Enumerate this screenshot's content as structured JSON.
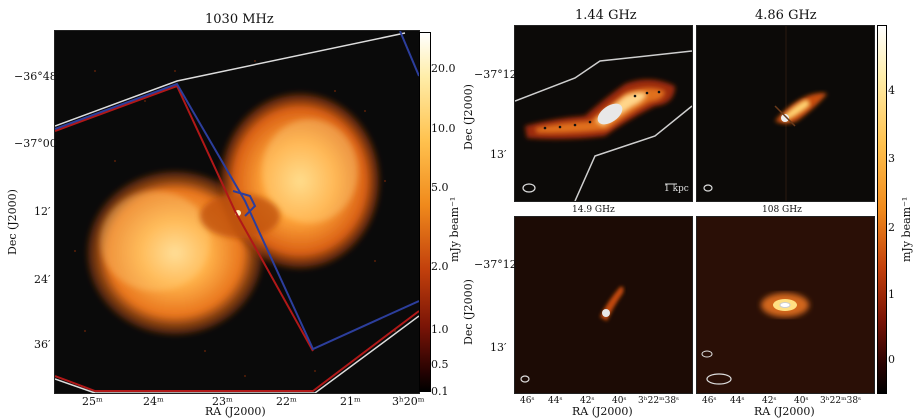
{
  "left_panel": {
    "title": "1030 MHz",
    "dec_ticks": [
      "−36°48′",
      "−37°00′",
      "12′",
      "24′",
      "36′"
    ],
    "ra_ticks": [
      "25ᵐ",
      "24ᵐ",
      "23ᵐ",
      "22ᵐ",
      "21ᵐ",
      "3ʰ20ᵐ"
    ],
    "xlabel": "RA (J2000)",
    "ylabel": "Dec (J2000)",
    "colorbar_ticks": [
      "20.0",
      "10.0",
      "5.0",
      "2.0",
      "1.0",
      "0.5",
      "0.1"
    ],
    "colorbar_label": "mJy beam⁻¹"
  },
  "right_panels": {
    "titles": [
      "1.44 GHz",
      "4.86 GHz"
    ],
    "subtitles": [
      "14.9 GHz",
      "108 GHz"
    ],
    "dec_ticks_top": [
      "−37°12′",
      "13′"
    ],
    "dec_ticks_bottom": [
      "−37°12′",
      "13′"
    ],
    "ra_ticks": [
      "46ˢ",
      "44ˢ",
      "42ˢ",
      "40ˢ",
      "3ʰ22ᵐ38ˢ"
    ],
    "xlabel": "RA (J2000)",
    "ylabel": "Dec (J2000)",
    "scalebar_label": "1 kpc",
    "colorbar_ticks": [
      "4",
      "3",
      "2",
      "1",
      "0"
    ],
    "colorbar_label": "mJy beam⁻¹"
  }
}
